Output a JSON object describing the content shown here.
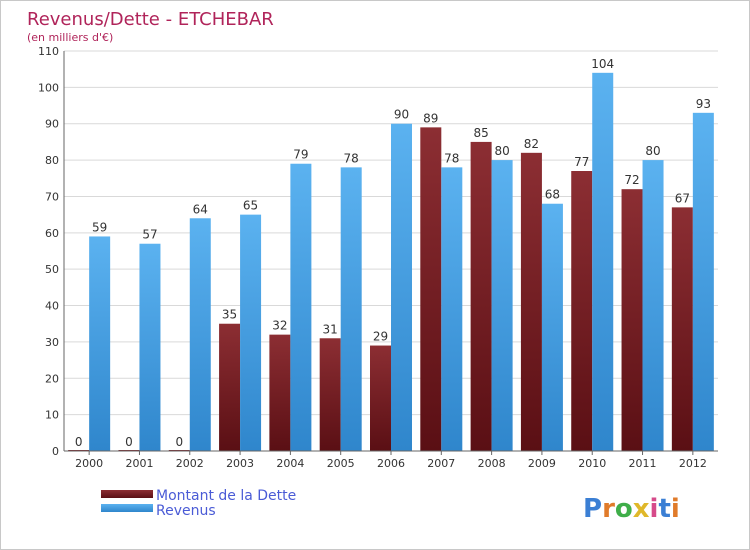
{
  "chart_data": {
    "type": "bar",
    "title": "Revenus/Dette - ETCHEBAR",
    "subtitle": "(en milliers d'€)",
    "categories": [
      "2000",
      "2001",
      "2002",
      "2003",
      "2004",
      "2005",
      "2006",
      "2007",
      "2008",
      "2009",
      "2010",
      "2011",
      "2012"
    ],
    "series": [
      {
        "name": "Montant de la Dette",
        "color": "#7a1c22",
        "values": [
          0,
          0,
          0,
          35,
          32,
          31,
          29,
          89,
          85,
          82,
          77,
          72,
          67
        ]
      },
      {
        "name": "Revenus",
        "color": "#4ea6e8",
        "values": [
          59,
          57,
          64,
          65,
          79,
          78,
          90,
          78,
          80,
          68,
          104,
          80,
          93
        ]
      }
    ],
    "ylim": [
      0,
      110
    ],
    "yticks": [
      0,
      10,
      20,
      30,
      40,
      50,
      60,
      70,
      80,
      90,
      100,
      110
    ],
    "grid": true,
    "legend": "bottom-left"
  },
  "logo": {
    "letters": [
      "P",
      "r",
      "o",
      "x",
      "i",
      "t",
      "i"
    ]
  }
}
